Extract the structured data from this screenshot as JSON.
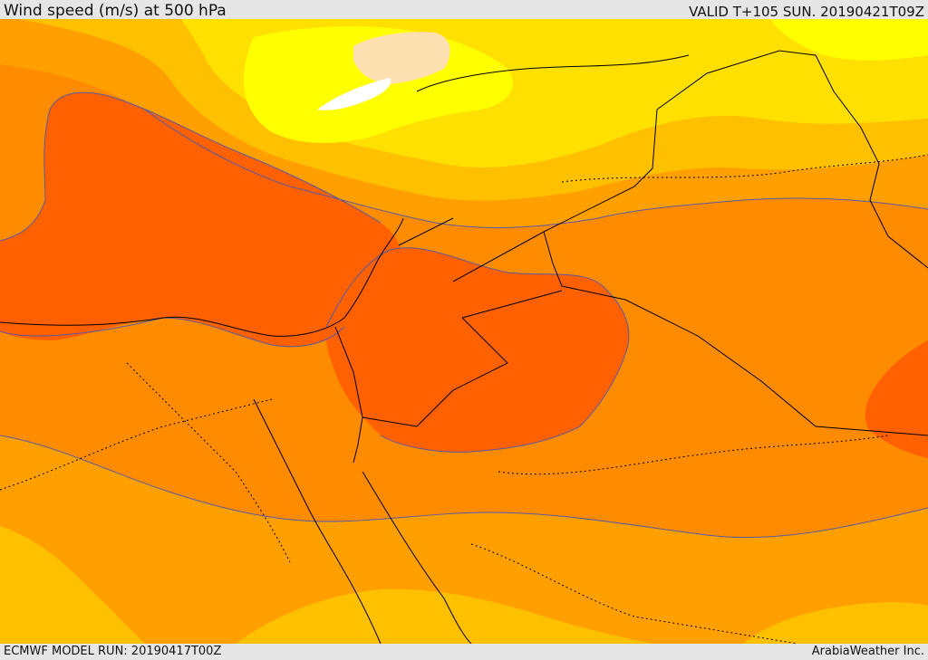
{
  "header": {
    "title": "Wind speed (m/s) at 500 hPa",
    "valid_time": "VALID T+105 SUN. 20190421T09Z"
  },
  "footer": {
    "model_run": "ECMWF MODEL RUN: 20190417T00Z",
    "credit": "ArabiaWeather Inc."
  },
  "palette": {
    "band_lightest": "#fde0b0",
    "band_white": "#ffffff",
    "band_yellow": "#ffff00",
    "band_gold": "#ffe000",
    "band_amber": "#ffc000",
    "band_orange": "#ffa000",
    "band_dark_orange": "#ff8c00",
    "band_red_orange": "#ff6000",
    "coastline": "#000000",
    "contour": "#5a5aa0"
  }
}
